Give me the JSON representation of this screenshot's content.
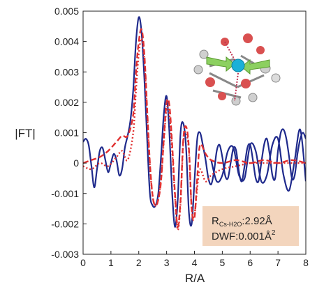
{
  "chart_data": {
    "type": "line",
    "xlabel": "R/A",
    "ylabel": "|FT|",
    "xlim": [
      0,
      8
    ],
    "ylim": [
      -0.003,
      0.005
    ],
    "grid": false,
    "x_ticks": [
      0,
      1,
      2,
      3,
      4,
      5,
      6,
      7,
      8
    ],
    "x_tick_labels": [
      "0",
      "1",
      "2",
      "3",
      "4",
      "5",
      "6",
      "7",
      "8"
    ],
    "y_ticks": [
      0.005,
      0.004,
      0.003,
      0.002,
      0.001,
      0,
      -0.001,
      -0.002,
      -0.003
    ],
    "y_tick_labels": [
      "0.005",
      "0.004",
      "0.003",
      "0.002",
      "0.001",
      "0",
      "-0.001",
      "-0.002",
      "-0.003"
    ],
    "series": [
      {
        "style": "solid",
        "color": "#1f2a8c",
        "x": [
          0,
          0.1,
          0.2,
          0.3,
          0.4,
          0.5,
          0.6,
          0.7,
          0.8,
          0.9,
          1.0,
          1.1,
          1.2,
          1.3,
          1.4,
          1.5,
          1.6,
          1.7,
          1.8,
          1.9,
          2.0,
          2.1,
          2.2,
          2.3,
          2.4,
          2.5,
          2.6,
          2.7,
          2.8,
          2.9,
          3.0,
          3.1,
          3.2,
          3.3,
          3.4,
          3.5,
          3.6,
          3.7,
          3.8,
          3.9,
          4.0,
          4.1,
          4.2,
          4.3,
          4.4,
          4.5,
          4.6,
          4.7,
          4.8,
          4.9,
          5.0,
          5.1,
          5.2,
          5.3,
          5.4,
          5.5,
          5.6,
          5.7,
          5.8,
          5.9,
          6.0,
          6.1,
          6.2,
          6.3,
          6.4,
          6.5,
          6.6,
          6.7,
          6.8,
          6.9,
          7.0,
          7.1,
          7.2,
          7.3,
          7.4,
          7.5,
          7.6,
          7.7,
          7.8,
          7.9,
          8.0
        ],
        "y": [
          0.0007,
          0.0008,
          0.0006,
          -0.0001,
          -0.0008,
          -0.0002,
          0.0004,
          0.0005,
          0.0001,
          -0.0003,
          0.0,
          0.0003,
          0.0001,
          -0.0004,
          -0.0002,
          0.0005,
          0.0009,
          0.0014,
          0.0024,
          0.004,
          0.0048,
          0.0043,
          0.0028,
          0.0008,
          -0.001,
          -0.0014,
          -0.0014,
          -0.001,
          0.0002,
          0.0016,
          0.0022,
          0.001,
          -0.001,
          -0.0021,
          -0.0012,
          0.001,
          0.0013,
          0.0005,
          -0.0016,
          -0.002,
          -0.0006,
          0.0008,
          0.001,
          0.0006,
          0.0001,
          -0.0005,
          -0.0007,
          -0.0003,
          0.0004,
          0.0006,
          0.0002,
          -0.0004,
          -0.0005,
          0.0,
          0.0005,
          0.0004,
          -0.0003,
          -0.0006,
          -0.0001,
          0.0005,
          0.0006,
          0.0001,
          -0.0005,
          -0.0006,
          0.0,
          0.0006,
          0.0008,
          0.0003,
          -0.0004,
          -0.0005,
          0.0004,
          0.001,
          0.0011,
          0.0008,
          0.0002,
          -0.0005,
          -0.0004,
          0.0003,
          0.0008,
          0.001,
          0.0008
        ]
      },
      {
        "style": "solid",
        "color": "#1f2a8c",
        "x": [
          4.6,
          4.8,
          5.0,
          5.2,
          5.4,
          5.6,
          5.8,
          6.0,
          6.2,
          6.4,
          6.6,
          6.8,
          7.0,
          7.2,
          7.4,
          7.6,
          7.8,
          8.0
        ],
        "y": [
          0.0001,
          -0.0006,
          -0.0004,
          0.0004,
          0.0005,
          -0.0004,
          -0.0005,
          0.0006,
          0.0004,
          -0.0006,
          -0.0004,
          0.0006,
          0.0008,
          -0.0004,
          -0.0009,
          0.0001,
          0.0011,
          -0.0006
        ]
      },
      {
        "style": "dash",
        "color": "#e03030",
        "x": [
          0,
          0.3,
          0.6,
          0.9,
          1.2,
          1.4,
          1.6,
          1.8,
          1.9,
          2.0,
          2.1,
          2.2,
          2.3,
          2.4,
          2.5,
          2.6,
          2.7,
          2.8,
          2.9,
          3.0,
          3.1,
          3.2,
          3.3,
          3.4,
          3.5,
          3.6,
          3.7,
          3.8,
          3.9,
          4.0,
          4.1,
          4.2,
          4.4,
          4.6,
          5.0,
          5.5,
          6.0,
          6.5,
          7.0,
          7.5,
          8.0
        ],
        "y": [
          0.0,
          0.0001,
          0.0002,
          0.0004,
          0.0007,
          0.0009,
          0.0009,
          0.0016,
          0.003,
          0.004,
          0.0044,
          0.0036,
          0.0018,
          0.0,
          -0.0011,
          -0.0014,
          -0.0012,
          -0.0006,
          0.0008,
          0.002,
          0.0019,
          0.0006,
          -0.001,
          -0.0021,
          -0.0012,
          0.0008,
          0.0012,
          0.0005,
          -0.0015,
          -0.0018,
          -0.0005,
          0.0006,
          0.0003,
          0.0001,
          0.0,
          0.0001,
          0.0,
          0.0001,
          0.0,
          0.0001,
          0.0
        ]
      },
      {
        "style": "dot",
        "color": "#e03030",
        "x": [
          0,
          0.3,
          0.6,
          0.9,
          1.2,
          1.4,
          1.6,
          1.8,
          1.9,
          2.0,
          2.1,
          2.2,
          2.3,
          2.4,
          2.5,
          2.6,
          2.7,
          2.8,
          2.9,
          3.0,
          3.1,
          3.2,
          3.3,
          3.4,
          3.5,
          3.6,
          3.7,
          3.8,
          3.9,
          4.0,
          4.1,
          4.2,
          4.4,
          4.6,
          5.0,
          5.5,
          6.0,
          6.5,
          7.0,
          7.5,
          8.0
        ],
        "y": [
          -0.0001,
          -0.0002,
          0.0,
          -0.0001,
          0.0002,
          0.0004,
          0.0001,
          0.001,
          0.0024,
          0.0036,
          0.0041,
          0.0034,
          0.0016,
          -0.0001,
          -0.0011,
          -0.0014,
          -0.0012,
          -0.0005,
          0.0007,
          0.0018,
          0.0016,
          0.0004,
          -0.0011,
          -0.0022,
          -0.0013,
          0.0007,
          0.001,
          0.0004,
          -0.0015,
          -0.0017,
          -0.0008,
          -0.0002,
          -0.0006,
          -0.0004,
          -0.0002,
          -0.0001,
          0.0,
          0.0,
          0.0,
          0.0,
          0.0
        ]
      }
    ],
    "annotation": {
      "line1_prefix": "R",
      "line1_sub": "Cs-H2O",
      "line1_suffix": ":2.92Å",
      "line2_prefix": "DWF:0.001Å",
      "line2_sup": "2",
      "background": "#f3d5bd"
    }
  }
}
